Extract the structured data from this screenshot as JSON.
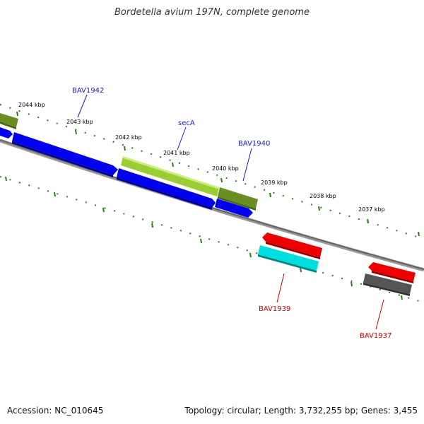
{
  "title": "Bordetella avium 197N, complete genome",
  "accession": "Accession: NC_010645",
  "topology": "Topology: circular; Length: 3,732,255 bp; Genes: 3,455",
  "colors": {
    "backbone": "#777777",
    "tick": "#2e7d1a",
    "forward_label": "#1a1acc",
    "reverse_label": "#cc0000",
    "blue_gene": "#0000ee",
    "olive_gene": "#6b8e23",
    "lime_gene": "#9acd32",
    "red_gene": "#ee0000",
    "cyan_gene": "#00dddd",
    "gray_gene": "#555555"
  },
  "ticks": [
    {
      "label": "2044 kbp"
    },
    {
      "label": "2043 kbp"
    },
    {
      "label": "2042 kbp"
    },
    {
      "label": "2041 kbp"
    },
    {
      "label": "2040 kbp"
    },
    {
      "label": "2039 kbp"
    },
    {
      "label": "2038 kbp"
    },
    {
      "label": "2037 kbp"
    }
  ],
  "gene_labels": {
    "bav1942": "BAV1942",
    "seca": "secA",
    "bav1940": "BAV1940",
    "bav1939": "BAV1939",
    "bav1937": "BAV1937"
  }
}
